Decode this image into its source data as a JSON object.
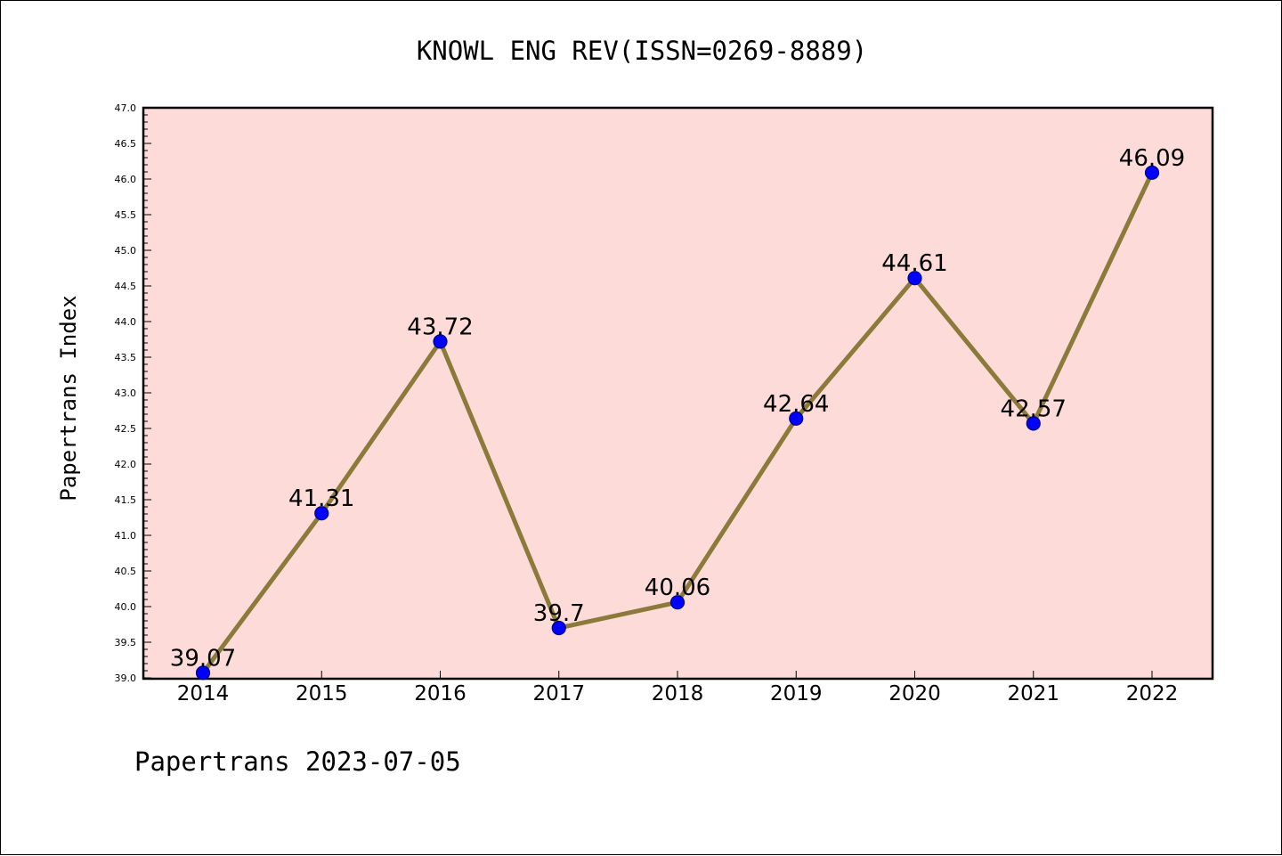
{
  "chart_data": {
    "type": "line",
    "title": "KNOWL ENG REV(ISSN=0269-8889)",
    "ylabel": "Papertrans Index",
    "xlabel": "",
    "footer": "Papertrans 2023-07-05",
    "categories": [
      "2014",
      "2015",
      "2016",
      "2017",
      "2018",
      "2019",
      "2020",
      "2021",
      "2022"
    ],
    "values": [
      39.07,
      41.31,
      43.72,
      39.7,
      40.06,
      42.64,
      44.61,
      42.57,
      46.09
    ],
    "data_labels": [
      "39.07",
      "41.31",
      "43.72",
      "39.7",
      "40.06",
      "42.64",
      "44.61",
      "42.57",
      "46.09"
    ],
    "ylim": [
      39.0,
      47.0
    ],
    "yticks": [
      "39.0",
      "39.5",
      "40.0",
      "40.5",
      "41.0",
      "41.5",
      "42.0",
      "42.5",
      "43.0",
      "43.5",
      "44.0",
      "44.5",
      "45.0",
      "45.5",
      "46.0",
      "46.5",
      "47.0"
    ],
    "grid": false,
    "legend": "none",
    "colors": {
      "plot_background": "#fddbd8",
      "line": "#8b7a3a",
      "marker": "#0000ff",
      "marker_edge": "#000080"
    }
  }
}
